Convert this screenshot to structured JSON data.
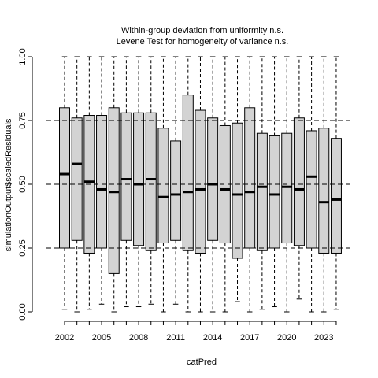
{
  "chart_data": {
    "type": "boxplot",
    "title": "Within-group deviation from uniformity n.s.",
    "subtitle": "Levene Test for homogeneity of variance n.s.",
    "xlabel": "catPred",
    "ylabel": "simulationOutput$scaledResiduals",
    "ylim": [
      0,
      1
    ],
    "y_ticks": [
      "0.00",
      "0.25",
      "0.50",
      "0.75",
      "1.00"
    ],
    "reference_lines": [
      0.25,
      0.5,
      0.75
    ],
    "x_tick_labels": [
      {
        "index": 0,
        "label": "2002"
      },
      {
        "index": 3,
        "label": "2005"
      },
      {
        "index": 6,
        "label": "2008"
      },
      {
        "index": 9,
        "label": "2011"
      },
      {
        "index": 12,
        "label": "2014"
      },
      {
        "index": 15,
        "label": "2017"
      },
      {
        "index": 18,
        "label": "2020"
      },
      {
        "index": 21,
        "label": "2023"
      }
    ],
    "categories": [
      "2002",
      "2003",
      "2004",
      "2005",
      "2006",
      "2007",
      "2008",
      "2009",
      "2010",
      "2011",
      "2012",
      "2013",
      "2014",
      "2015",
      "2016",
      "2017",
      "2018",
      "2019",
      "2020",
      "2021",
      "2022",
      "2023",
      "2024"
    ],
    "boxes": [
      {
        "min": 0.01,
        "q1": 0.25,
        "median": 0.54,
        "q3": 0.8,
        "max": 1.0
      },
      {
        "min": 0.0,
        "q1": 0.28,
        "median": 0.58,
        "q3": 0.76,
        "max": 1.0
      },
      {
        "min": 0.01,
        "q1": 0.23,
        "median": 0.51,
        "q3": 0.77,
        "max": 1.0
      },
      {
        "min": 0.03,
        "q1": 0.25,
        "median": 0.48,
        "q3": 0.77,
        "max": 1.0
      },
      {
        "min": 0.0,
        "q1": 0.15,
        "median": 0.47,
        "q3": 0.8,
        "max": 1.0
      },
      {
        "min": 0.02,
        "q1": 0.28,
        "median": 0.52,
        "q3": 0.78,
        "max": 1.0
      },
      {
        "min": 0.02,
        "q1": 0.26,
        "median": 0.5,
        "q3": 0.78,
        "max": 1.0
      },
      {
        "min": 0.03,
        "q1": 0.24,
        "median": 0.52,
        "q3": 0.78,
        "max": 1.0
      },
      {
        "min": 0.0,
        "q1": 0.27,
        "median": 0.45,
        "q3": 0.72,
        "max": 1.0
      },
      {
        "min": 0.03,
        "q1": 0.28,
        "median": 0.46,
        "q3": 0.67,
        "max": 1.0
      },
      {
        "min": 0.0,
        "q1": 0.24,
        "median": 0.47,
        "q3": 0.85,
        "max": 1.0
      },
      {
        "min": 0.0,
        "q1": 0.23,
        "median": 0.48,
        "q3": 0.79,
        "max": 1.0
      },
      {
        "min": 0.0,
        "q1": 0.28,
        "median": 0.5,
        "q3": 0.76,
        "max": 1.0
      },
      {
        "min": 0.0,
        "q1": 0.27,
        "median": 0.48,
        "q3": 0.73,
        "max": 1.0
      },
      {
        "min": 0.04,
        "q1": 0.21,
        "median": 0.46,
        "q3": 0.74,
        "max": 1.0
      },
      {
        "min": 0.0,
        "q1": 0.25,
        "median": 0.47,
        "q3": 0.8,
        "max": 1.0
      },
      {
        "min": 0.01,
        "q1": 0.24,
        "median": 0.49,
        "q3": 0.7,
        "max": 1.0
      },
      {
        "min": 0.02,
        "q1": 0.25,
        "median": 0.46,
        "q3": 0.69,
        "max": 1.0
      },
      {
        "min": 0.0,
        "q1": 0.27,
        "median": 0.49,
        "q3": 0.7,
        "max": 1.0
      },
      {
        "min": 0.05,
        "q1": 0.26,
        "median": 0.48,
        "q3": 0.76,
        "max": 1.0
      },
      {
        "min": 0.0,
        "q1": 0.25,
        "median": 0.53,
        "q3": 0.71,
        "max": 1.0
      },
      {
        "min": 0.0,
        "q1": 0.23,
        "median": 0.43,
        "q3": 0.72,
        "max": 1.0
      },
      {
        "min": 0.01,
        "q1": 0.23,
        "median": 0.44,
        "q3": 0.68,
        "max": 1.0
      }
    ],
    "grid": false,
    "box_fill": "#d3d3d3",
    "reference_line_color": "#000000"
  }
}
